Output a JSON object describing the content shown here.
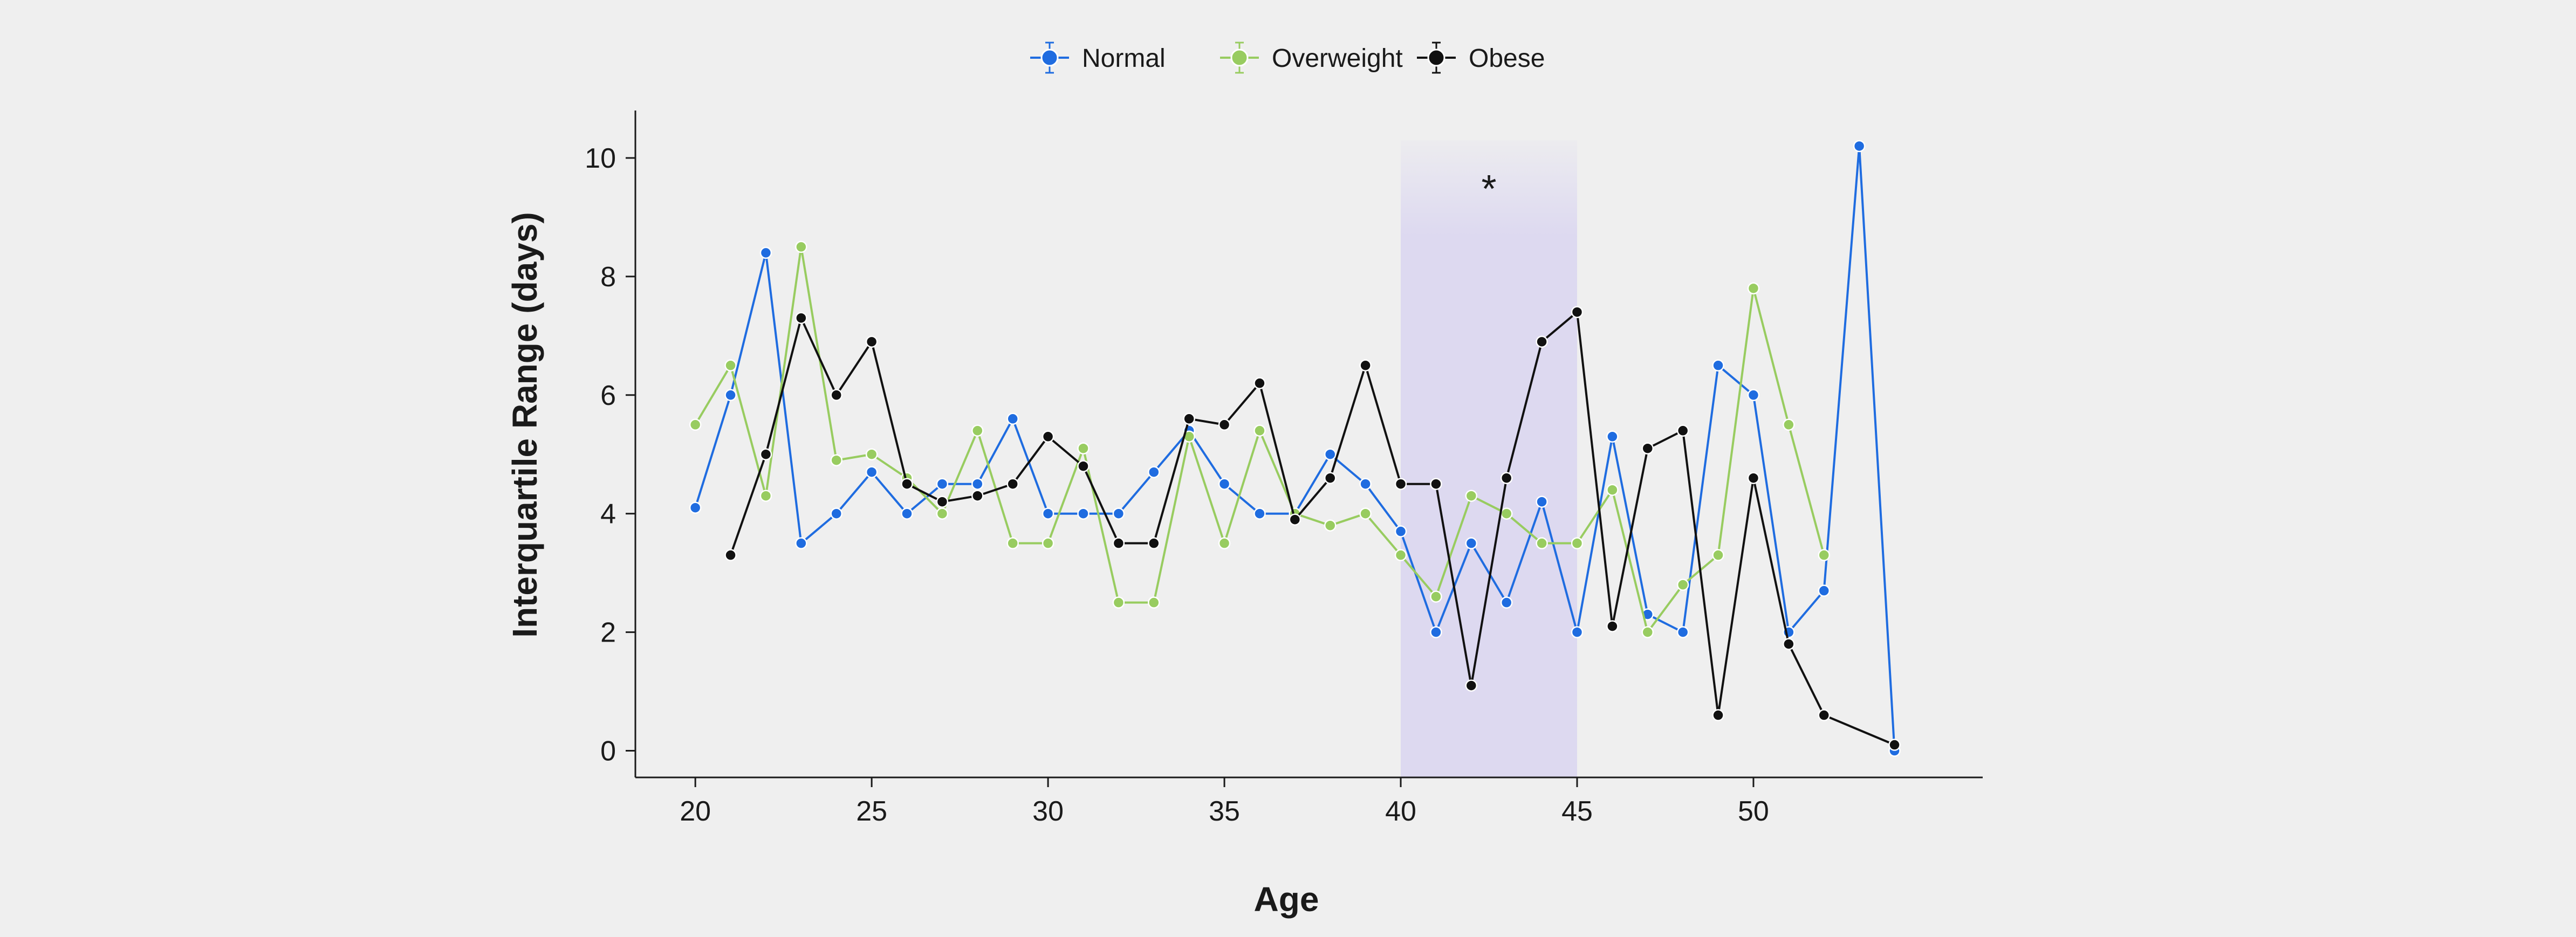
{
  "chart_data": {
    "type": "line",
    "xlabel": "Age",
    "ylabel": "Interquartile Range (days)",
    "xlim": [
      18.3,
      56.5
    ],
    "ylim": [
      -0.45,
      10.8
    ],
    "xticks": [
      20,
      25,
      30,
      35,
      40,
      45,
      50
    ],
    "yticks": [
      0,
      2,
      4,
      6,
      8,
      10
    ],
    "grid": false,
    "legend_position": "top-center",
    "highlight": {
      "x_start": 40,
      "x_end": 45,
      "color": "#ddd9f0",
      "marker": "*",
      "marker_x": 42.5,
      "marker_y": 9.6
    },
    "series": [
      {
        "name": "Normal",
        "color": "#1f6ce0",
        "x": [
          20,
          21,
          22,
          23,
          24,
          25,
          26,
          27,
          28,
          29,
          30,
          31,
          32,
          33,
          34,
          35,
          36,
          37,
          38,
          39,
          40,
          41,
          42,
          43,
          44,
          45,
          46,
          47,
          48,
          49,
          50,
          51,
          52,
          53,
          54
        ],
        "y": [
          4.1,
          6.0,
          8.4,
          3.5,
          4.0,
          4.7,
          4.0,
          4.5,
          4.5,
          5.6,
          4.0,
          4.0,
          4.0,
          4.7,
          5.4,
          4.5,
          4.0,
          4.0,
          5.0,
          4.5,
          3.7,
          2.0,
          3.5,
          2.5,
          4.2,
          2.0,
          5.3,
          2.3,
          2.0,
          6.5,
          6.0,
          2.0,
          2.7,
          10.2,
          0.0
        ]
      },
      {
        "name": "Overweight",
        "color": "#98cc60",
        "x": [
          20,
          21,
          22,
          23,
          24,
          25,
          26,
          27,
          28,
          29,
          30,
          31,
          32,
          33,
          34,
          35,
          36,
          37,
          38,
          39,
          40,
          41,
          42,
          43,
          44,
          45,
          46,
          47,
          48,
          49,
          50,
          51,
          52
        ],
        "y": [
          5.5,
          6.5,
          4.3,
          8.5,
          4.9,
          5.0,
          4.6,
          4.0,
          5.4,
          3.5,
          3.5,
          5.1,
          2.5,
          2.5,
          5.3,
          3.5,
          5.4,
          4.0,
          3.8,
          4.0,
          3.3,
          2.6,
          4.3,
          4.0,
          3.5,
          3.5,
          4.4,
          2.0,
          2.8,
          3.3,
          7.8,
          5.5,
          3.3
        ]
      },
      {
        "name": "Obese",
        "color": "#111111",
        "x": [
          21,
          22,
          23,
          24,
          25,
          26,
          27,
          28,
          29,
          30,
          31,
          32,
          33,
          34,
          35,
          36,
          37,
          38,
          39,
          40,
          41,
          42,
          43,
          44,
          45,
          46,
          47,
          48,
          49,
          50,
          51,
          52,
          54
        ],
        "y": [
          3.3,
          5.0,
          7.3,
          6.0,
          6.9,
          4.5,
          4.2,
          4.3,
          4.5,
          5.3,
          4.8,
          3.5,
          3.5,
          5.6,
          5.5,
          6.2,
          3.9,
          4.6,
          6.5,
          4.5,
          4.5,
          1.1,
          4.6,
          6.9,
          7.4,
          2.1,
          5.1,
          5.4,
          0.6,
          4.6,
          1.8,
          0.6,
          0.1
        ]
      }
    ]
  }
}
